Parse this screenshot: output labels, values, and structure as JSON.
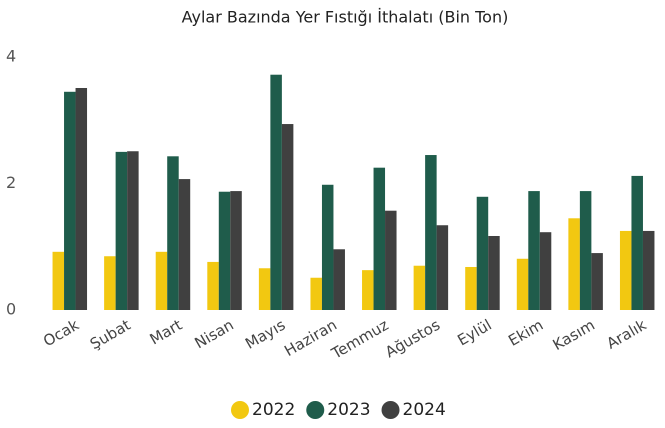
{
  "chart_data": {
    "type": "bar",
    "title": "Aylar Bazında Yer Fıstığı İthalatı (Bin Ton)",
    "categories": [
      "Ocak",
      "Şubat",
      "Mart",
      "Nisan",
      "Mayıs",
      "Haziran",
      "Temmuz",
      "Ağustos",
      "Eylül",
      "Ekim",
      "Kasım",
      "Aralık"
    ],
    "series": [
      {
        "name": "2022",
        "color": "#f2c811",
        "values": [
          0.92,
          0.85,
          0.92,
          0.76,
          0.66,
          0.51,
          0.63,
          0.7,
          0.68,
          0.81,
          1.45,
          1.25
        ]
      },
      {
        "name": "2023",
        "color": "#1f5c4b",
        "values": [
          3.45,
          2.5,
          2.43,
          1.87,
          3.72,
          1.98,
          2.25,
          2.45,
          1.79,
          1.88,
          1.88,
          2.12
        ]
      },
      {
        "name": "2024",
        "color": "#404040",
        "values": [
          3.51,
          2.51,
          2.07,
          1.88,
          2.94,
          0.96,
          1.57,
          1.34,
          1.17,
          1.23,
          0.9,
          1.25
        ]
      }
    ],
    "ylim": [
      0,
      4
    ],
    "yticks": [
      0,
      2,
      4
    ],
    "grid": false,
    "legend": "bottom"
  }
}
